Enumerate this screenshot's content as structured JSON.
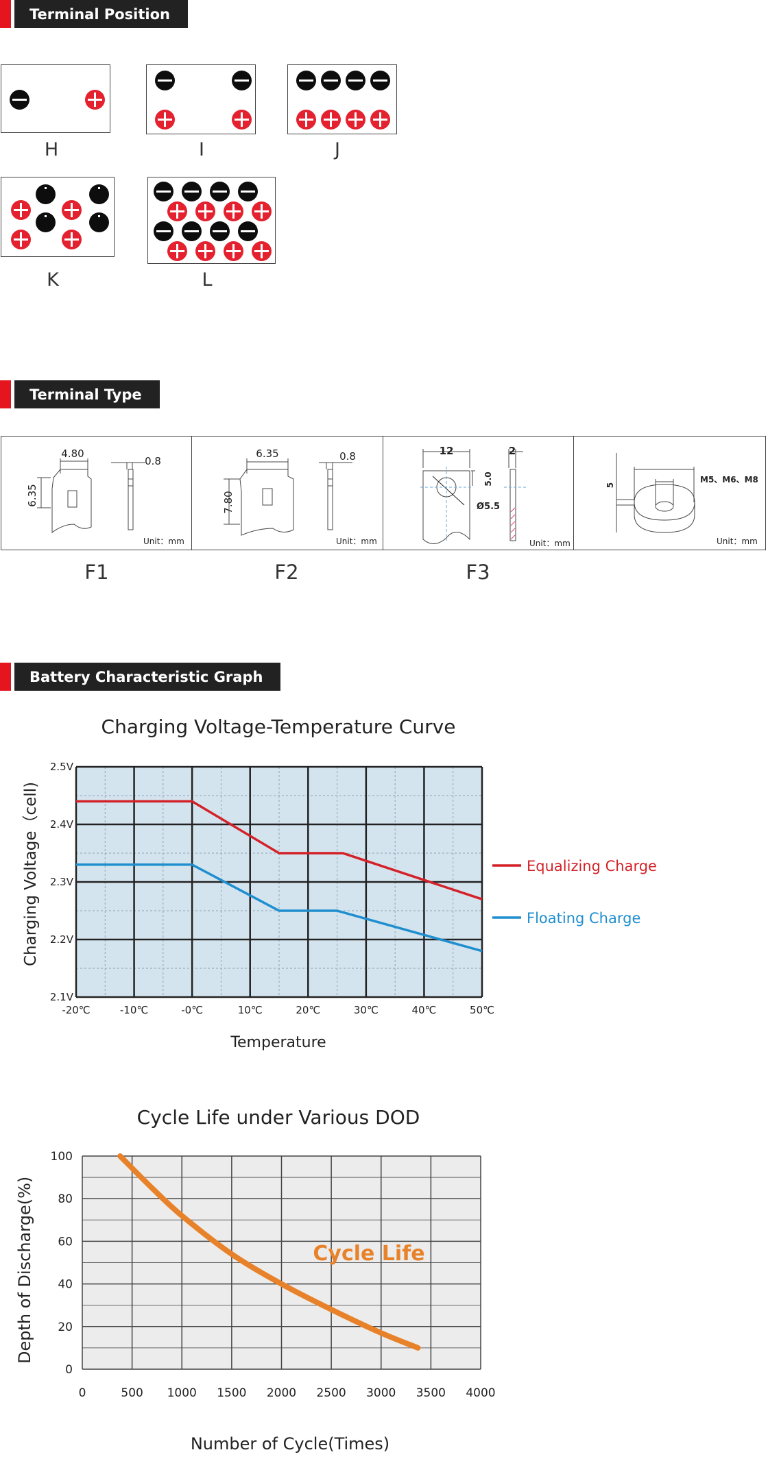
{
  "sections": {
    "terminal_position": "Terminal Position",
    "terminal_type": "Terminal Type",
    "battery_graph": "Battery Characteristic Graph"
  },
  "terminal_layouts": [
    {
      "label": "H"
    },
    {
      "label": "I"
    },
    {
      "label": "J"
    },
    {
      "label": "K"
    },
    {
      "label": "L"
    }
  ],
  "terminal_types": [
    {
      "label": "F1",
      "width": "4.80",
      "height": "6.35",
      "thickness": "0.8",
      "unit": "Unit：mm"
    },
    {
      "label": "F2",
      "width": "6.35",
      "height": "7.80",
      "thickness": "0.8",
      "unit": "Unit：mm"
    },
    {
      "label": "F3",
      "width": "12",
      "thickness": "2",
      "offset": "5.0",
      "hole": "Ø5.5",
      "unit": "Unit：mm"
    },
    {
      "label": "",
      "height": "5",
      "bolts": "M5、M6、M8",
      "unit": "Unit：mm"
    }
  ],
  "chart_data": [
    {
      "type": "line",
      "title": "Charging Voltage-Temperature Curve",
      "xlabel": "Temperature",
      "ylabel": "Charging Voltage（cell)",
      "x_tick_labels": [
        "-20℃",
        "-10℃",
        "-0℃",
        "10℃",
        "20℃",
        "30℃",
        "40℃",
        "50℃"
      ],
      "y_tick_labels": [
        "2.5V",
        "2.4V",
        "2.3V",
        "2.2V",
        "2.1V"
      ],
      "xlim": [
        -20,
        50
      ],
      "ylim": [
        2.1,
        2.5
      ],
      "series": [
        {
          "name": "Equalizing Charge",
          "color": "#d42128",
          "x": [
            -20,
            0,
            15,
            26,
            50
          ],
          "y": [
            2.44,
            2.44,
            2.35,
            2.35,
            2.27
          ]
        },
        {
          "name": "Floating Charge",
          "color": "#1f8ecf",
          "x": [
            -20,
            0,
            15,
            25,
            50
          ],
          "y": [
            2.33,
            2.33,
            2.25,
            2.25,
            2.18
          ]
        }
      ],
      "grid": true,
      "legend": "right"
    },
    {
      "type": "line",
      "title": "Cycle Life under Various DOD",
      "xlabel": "Number of Cycle(Times)",
      "ylabel": "Depth of Discharge(%)",
      "x_tick_labels": [
        "0",
        "500",
        "1000",
        "1500",
        "2000",
        "2500",
        "3000",
        "3500",
        "4000"
      ],
      "y_tick_labels": [
        "100",
        "80",
        "60",
        "40",
        "20",
        "0"
      ],
      "xlim": [
        0,
        4000
      ],
      "ylim": [
        0,
        100
      ],
      "annotation": "Cycle  Life",
      "series": [
        {
          "name": "Cycle Life",
          "color": "#e8822a",
          "x": [
            380,
            700,
            1000,
            1500,
            2000,
            2500,
            3000,
            3370
          ],
          "y": [
            100,
            85,
            72,
            54,
            40,
            28,
            17,
            10
          ]
        }
      ],
      "grid": true
    }
  ]
}
